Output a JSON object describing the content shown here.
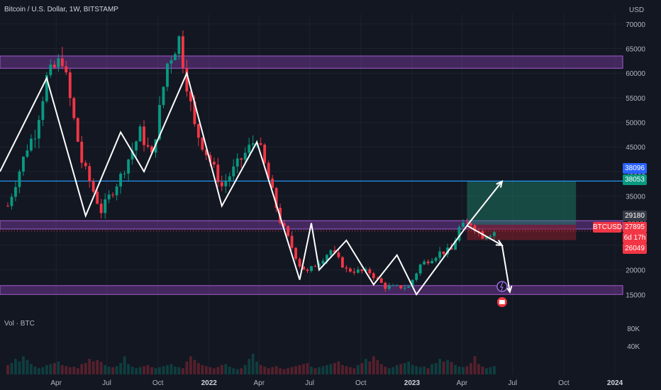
{
  "header": {
    "title": "Bitcoin / U.S. Dollar, 1W, BITSTAMP",
    "currency": "USD",
    "volume_label": "Vol · BTC"
  },
  "colors": {
    "background": "#131722",
    "bull": "#089981",
    "bear": "#f23645",
    "zone": "#7e3fa8",
    "resistance_line": "#2196f3",
    "pattern_line": "#ffffff",
    "price_label": "#f23645",
    "target_up": "#1e8a6e",
    "target_down": "#8b1f2a"
  },
  "chart_data": {
    "type": "candlestick",
    "symbol": "BTCUSD",
    "interval": "1W",
    "exchange": "BITSTAMP",
    "x_range": [
      "2020-12-21",
      "2024-01-15"
    ],
    "ylim": [
      11000,
      72000
    ],
    "x_ticks": [
      "Apr",
      "Jul",
      "Oct",
      "2022",
      "Apr",
      "Jul",
      "Oct",
      "2023",
      "Apr",
      "Jul",
      "Oct",
      "2024"
    ],
    "y_ticks": [
      15000,
      20000,
      25000,
      30000,
      35000,
      40000,
      45000,
      50000,
      55000,
      60000,
      65000,
      70000
    ],
    "volume_ticks": [
      "40K",
      "80K"
    ],
    "price_path": [
      [
        "2021-01-04",
        33000
      ],
      [
        "2021-02-08",
        45000
      ],
      [
        "2021-02-22",
        48000
      ],
      [
        "2021-03-15",
        59000
      ],
      [
        "2021-04-12",
        63000
      ],
      [
        "2021-05-17",
        42000
      ],
      [
        "2021-06-21",
        32000
      ],
      [
        "2021-07-26",
        39000
      ],
      [
        "2021-08-30",
        48000
      ],
      [
        "2021-09-20",
        43000
      ],
      [
        "2021-10-18",
        62000
      ],
      [
        "2021-11-08",
        67000
      ],
      [
        "2021-12-06",
        49000
      ],
      [
        "2022-01-24",
        37000
      ],
      [
        "2022-03-28",
        47000
      ],
      [
        "2022-05-09",
        30000
      ],
      [
        "2022-06-13",
        21000
      ],
      [
        "2022-06-27",
        19500
      ],
      [
        "2022-08-08",
        24000
      ],
      [
        "2022-09-05",
        20000
      ],
      [
        "2022-10-17",
        19500
      ],
      [
        "2022-11-14",
        16500
      ],
      [
        "2022-12-26",
        16500
      ],
      [
        "2023-01-16",
        21000
      ],
      [
        "2023-02-20",
        23500
      ],
      [
        "2023-03-13",
        24000
      ],
      [
        "2023-03-27",
        28500
      ],
      [
        "2023-04-17",
        29500
      ],
      [
        "2023-05-08",
        27000
      ],
      [
        "2023-05-29",
        27800
      ]
    ],
    "volume": [
      18,
      22,
      30,
      25,
      35,
      28,
      20,
      15,
      12,
      14,
      18,
      20,
      22,
      25,
      18,
      16,
      14,
      15,
      12,
      20,
      22,
      30,
      25,
      28,
      24,
      18,
      15,
      14,
      16,
      22,
      35,
      20,
      15,
      12,
      14,
      16,
      18,
      14,
      12,
      14,
      16,
      18,
      20,
      15,
      14,
      12,
      25,
      35,
      28,
      22,
      18,
      16,
      14,
      12,
      14,
      18,
      20,
      15,
      12,
      10,
      12,
      18,
      30,
      40,
      25,
      18,
      15,
      12,
      14,
      16,
      12,
      10,
      12,
      14,
      16,
      18,
      20,
      22,
      15,
      12,
      14,
      16,
      18,
      20,
      22,
      25,
      18,
      16,
      14,
      12
    ],
    "zones": [
      {
        "name": "resistance-zone",
        "low": 61000,
        "high": 63500
      },
      {
        "name": "mid-zone",
        "low": 28300,
        "high": 30000
      },
      {
        "name": "support-zone",
        "low": 15000,
        "high": 16800
      }
    ],
    "horizontal_line": 38053,
    "current_price_line": 27895,
    "pattern": [
      [
        "2020-12-21",
        40000
      ],
      [
        "2021-03-15",
        59000
      ],
      [
        "2021-05-24",
        31000
      ],
      [
        "2021-07-26",
        48000
      ],
      [
        "2021-09-06",
        40000
      ],
      [
        "2021-11-22",
        60000
      ],
      [
        "2022-01-24",
        33000
      ],
      [
        "2022-03-28",
        46000
      ],
      [
        "2022-06-13",
        18000
      ],
      [
        "2022-07-04",
        29500
      ],
      [
        "2022-07-18",
        20000
      ],
      [
        "2022-09-05",
        26000
      ],
      [
        "2022-10-24",
        17000
      ],
      [
        "2022-12-05",
        23000
      ],
      [
        "2023-01-09",
        15000
      ],
      [
        "2023-04-10",
        29000
      ]
    ],
    "projections": [
      {
        "from": [
          "2023-04-10",
          29000
        ],
        "to": [
          "2023-06-12",
          38000
        ]
      },
      {
        "from": [
          "2023-04-10",
          29000
        ],
        "to": [
          "2023-06-12",
          25000
        ]
      },
      {
        "from": [
          "2023-06-12",
          25000
        ],
        "to": [
          "2023-06-26",
          15500
        ]
      }
    ],
    "position_box": {
      "start": "2023-04-10",
      "end": "2023-10-23",
      "entry": 29180,
      "target": 38096,
      "stop": 26049
    }
  },
  "price_labels": {
    "top": "38096",
    "line": "38053",
    "entry": "29180",
    "symbol": "BTCUSD",
    "current": "27895",
    "countdown": "6d 17h",
    "stop": "26049"
  }
}
